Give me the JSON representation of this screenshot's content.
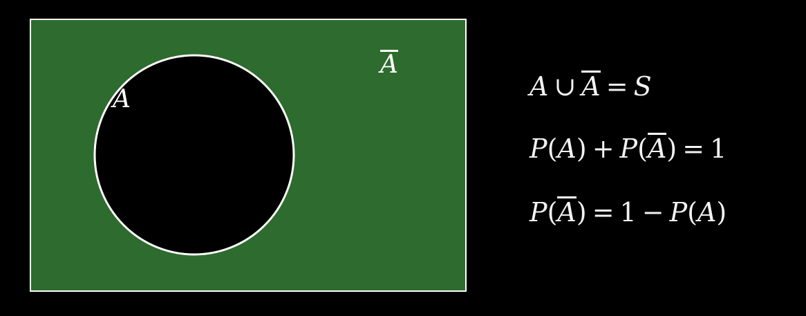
{
  "diagram": {
    "sample_space_color": "#2e6b2e",
    "event_color": "#000000",
    "border_color": "#ffffff",
    "label_a": "A",
    "label_a_complement": "A"
  },
  "equations": [
    {
      "lhs_a": "A",
      "union": "∪",
      "bar_a": "A",
      "eq": "=",
      "rhs": "S"
    },
    {
      "p1": "P",
      "a1": "A",
      "plus": "+",
      "p2": "P",
      "bar_a": "A",
      "eq": "=",
      "rhs": "1"
    },
    {
      "p1": "P",
      "bar_a": "A",
      "eq": "=",
      "one": "1",
      "minus": "−",
      "p2": "P",
      "a2": "A"
    }
  ]
}
